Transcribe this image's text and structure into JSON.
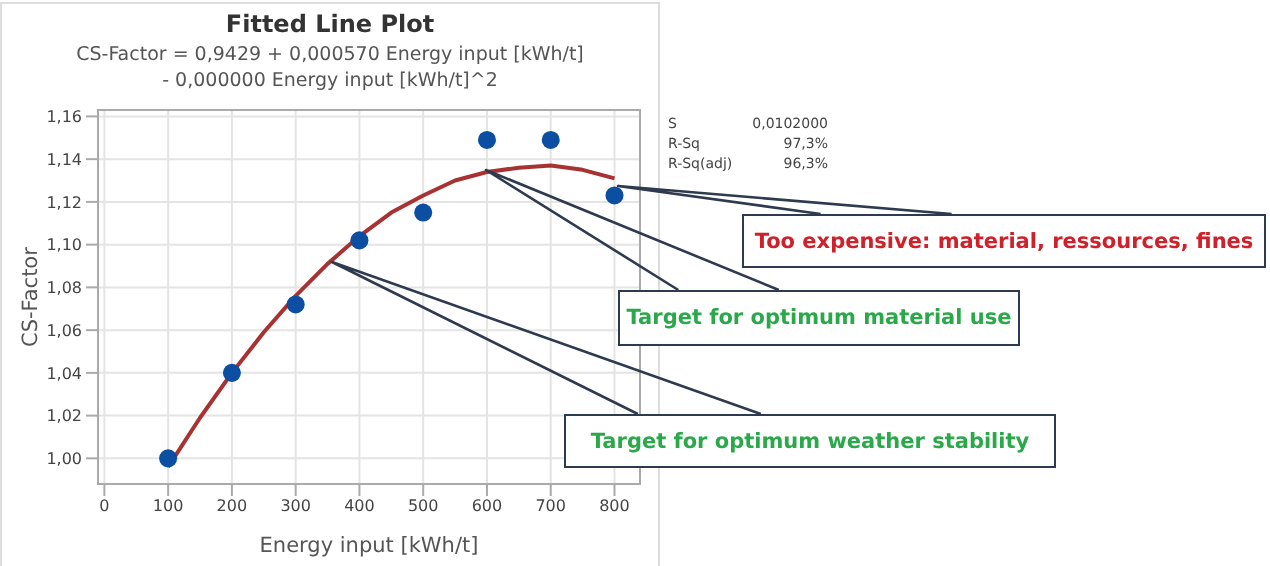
{
  "chart_data": {
    "type": "scatter",
    "title": "Fitted Line Plot",
    "subtitle": "CS-Factor = 0,9429 + 0,000570 Energy input [kWh/t]\n- 0,000000 Energy input [kWh/t]^2",
    "xlabel": "Energy input [kWh/t]",
    "ylabel": "CS-Factor",
    "series": [
      {
        "color": "#0b4ea2",
        "marker": "circle",
        "x": [
          100,
          200,
          300,
          400,
          500,
          600,
          700,
          800
        ],
        "values": [
          1.0,
          1.04,
          1.072,
          1.102,
          1.115,
          1.149,
          1.149,
          1.123
        ]
      },
      {
        "type": "line",
        "color": "#a83232",
        "marker": "none",
        "line_style": "solid",
        "x": [
          100,
          150,
          200,
          250,
          300,
          350,
          400,
          450,
          500,
          550,
          600,
          650,
          700,
          750,
          800
        ],
        "values": [
          0.996,
          1.019,
          1.04,
          1.059,
          1.076,
          1.091,
          1.104,
          1.115,
          1.123,
          1.13,
          1.134,
          1.136,
          1.137,
          1.135,
          1.131
        ]
      }
    ],
    "xlim": [
      -10,
      840
    ],
    "xticks": [
      0,
      100,
      200,
      300,
      400,
      500,
      600,
      700,
      800
    ],
    "ylim": [
      0.988,
      1.163
    ],
    "yticks": [
      {
        "value": 1.0,
        "label": "1,00"
      },
      {
        "value": 1.02,
        "label": "1,02"
      },
      {
        "value": 1.04,
        "label": "1,04"
      },
      {
        "value": 1.06,
        "label": "1,06"
      },
      {
        "value": 1.08,
        "label": "1,08"
      },
      {
        "value": 1.1,
        "label": "1,10"
      },
      {
        "value": 1.12,
        "label": "1,12"
      },
      {
        "value": 1.14,
        "label": "1,14"
      },
      {
        "value": 1.16,
        "label": "1,16"
      }
    ],
    "grid": true,
    "legend": false,
    "annotations": [
      "S 0,0102000",
      "R-Sq 97,3%",
      "R-Sq(adj) 96,3%",
      "Too expensive: material, ressources, fines",
      "Target for optimum material use",
      "Target for optimum weather stability"
    ]
  }
}
